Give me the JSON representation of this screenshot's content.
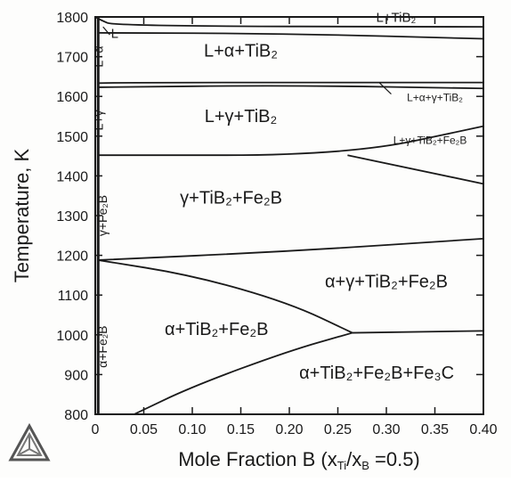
{
  "chart_data": {
    "type": "phase-diagram",
    "title": "",
    "xlabel": "Mole Fraction B (x",
    "xlabel_sub1": "Ti",
    "xlabel_mid": "/x",
    "xlabel_sub2": "B",
    "xlabel_end": " =0.5)",
    "ylabel": "Temperature, K",
    "xlim": [
      0,
      0.4
    ],
    "ylim": [
      800,
      1800
    ],
    "xticks": [
      0,
      0.05,
      0.1,
      0.15,
      0.2,
      0.25,
      0.3,
      0.35,
      0.4
    ],
    "xtick_labels": [
      "0",
      "0.05",
      "0.10",
      "0.15",
      "0.20",
      "0.25",
      "0.30",
      "0.35",
      "0.40"
    ],
    "yticks": [
      800,
      900,
      1000,
      1100,
      1200,
      1300,
      1400,
      1500,
      1600,
      1700,
      1800
    ],
    "ytick_labels": [
      "800",
      "900",
      "1000",
      "1100",
      "1200",
      "1300",
      "1400",
      "1500",
      "1600",
      "1700",
      "1800"
    ],
    "grid": false,
    "boundaries": [
      {
        "name": "liquidus-top",
        "x": [
          0,
          0.005,
          0.02,
          0.4
        ],
        "y": [
          1800,
          1793,
          1777,
          1775
        ]
      },
      {
        "name": "liquidus-ti-b2",
        "x": [
          0.002,
          0.2,
          0.4
        ],
        "y": [
          1760,
          1758,
          1745
        ]
      },
      {
        "name": "l-alpha-lower",
        "x": [
          0.003,
          0.006,
          0.4
        ],
        "y": [
          1632,
          1635,
          1635
        ]
      },
      {
        "name": "l-gamma-upper",
        "x": [
          0.003,
          0.2,
          0.4
        ],
        "y": [
          1623,
          1628,
          1620
        ]
      },
      {
        "name": "gamma-fe2b-upper",
        "x": [
          0.003,
          0.26,
          0.4
        ],
        "y": [
          1452,
          1452,
          1525
        ]
      },
      {
        "name": "gamma-fe2b-lower",
        "x": [
          0.26,
          0.4
        ],
        "y": [
          1452,
          1380
        ]
      },
      {
        "name": "alpha-gamma-upper",
        "x": [
          0.003,
          0.2,
          0.4
        ],
        "y": [
          1188,
          1210,
          1242
        ]
      },
      {
        "name": "alpha-fe2b-curve",
        "x": [
          0.003,
          0.1,
          0.2,
          0.265
        ],
        "y": [
          1188,
          1150,
          1080,
          1005
        ]
      },
      {
        "name": "fe3c-line",
        "x": [
          0.265,
          0.4
        ],
        "y": [
          1005,
          1010
        ]
      },
      {
        "name": "fe3c-curve",
        "x": [
          0.04,
          0.1,
          0.2,
          0.265
        ],
        "y": [
          800,
          870,
          960,
          1005
        ]
      },
      {
        "name": "left-boundary",
        "x": [
          0.003,
          0.003
        ],
        "y": [
          800,
          1800
        ]
      }
    ],
    "regions": [
      {
        "label": "L+TiB₂",
        "x": 0.31,
        "y": 1788
      },
      {
        "label": "L",
        "x": 0.02,
        "y": 1747
      },
      {
        "label": "L+α",
        "x": 0.008,
        "y": 1700,
        "rotated": true
      },
      {
        "label": "L+α+TiB₂",
        "x": 0.15,
        "y": 1700
      },
      {
        "label": "L+α+γ+TiB₂",
        "x": 0.35,
        "y": 1588
      },
      {
        "label": "L+γ",
        "x": 0.008,
        "y": 1540,
        "rotated": true
      },
      {
        "label": "L+γ+TiB₂",
        "x": 0.15,
        "y": 1535
      },
      {
        "label": "L+γ+TiB₂+Fe₂B",
        "x": 0.345,
        "y": 1480
      },
      {
        "label": "γ+Fe₂B",
        "x": 0.012,
        "y": 1300,
        "rotated": true
      },
      {
        "label": "γ+TiB₂+Fe₂B",
        "x": 0.14,
        "y": 1330
      },
      {
        "label": "α+γ+TiB₂+Fe₂B",
        "x": 0.3,
        "y": 1120
      },
      {
        "label": "α+TiB₂+Fe₂B",
        "x": 0.125,
        "y": 1000
      },
      {
        "label": "α+Fe₂B",
        "x": 0.012,
        "y": 970,
        "rotated": true
      },
      {
        "label": "α+TiB₂+Fe₂B+Fe₃C",
        "x": 0.29,
        "y": 890
      }
    ]
  },
  "colors": {
    "line": "#1a1a1a",
    "background": "#fdfdfc"
  },
  "logo": {
    "icon": "thermo-calc-triangle-icon"
  }
}
